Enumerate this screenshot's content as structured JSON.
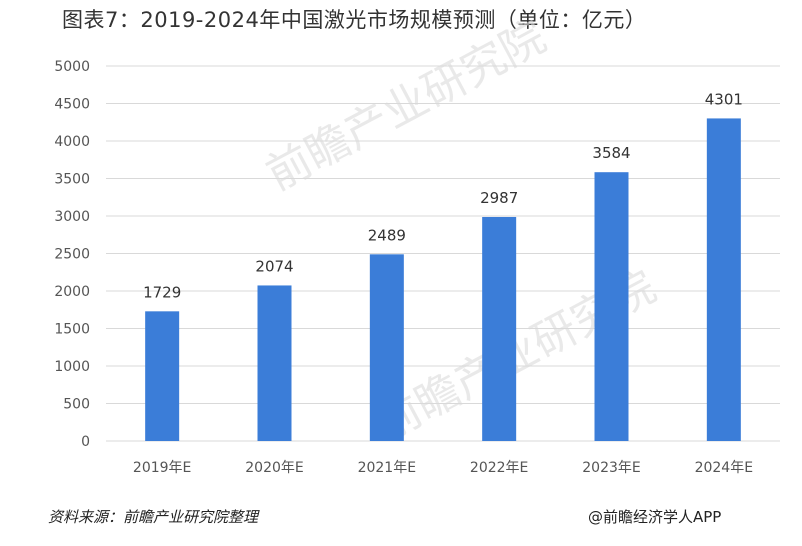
{
  "title": "图表7：2019-2024年中国激光市场规模预测（单位：亿元）",
  "watermark": "前瞻产业研究院",
  "footer": {
    "source": "资料来源：前瞻产业研究院整理",
    "brand": "@前瞻经济学人APP"
  },
  "colors": {
    "bar": "#3B7DD8",
    "grid": "#d9d9d9",
    "axis_text": "#555555"
  },
  "chart_data": {
    "type": "bar",
    "categories": [
      "2019年E",
      "2020年E",
      "2021年E",
      "2022年E",
      "2023年E",
      "2024年E"
    ],
    "values": [
      1729,
      2074,
      2489,
      2987,
      3584,
      4301
    ],
    "value_labels": [
      "1729",
      "2074",
      "2489",
      "2987",
      "3584",
      "4301"
    ],
    "ylim": [
      0,
      5000
    ],
    "yticks": [
      "0",
      "500",
      "1000",
      "1500",
      "2000",
      "2500",
      "3000",
      "3500",
      "4000",
      "4500",
      "5000"
    ],
    "grid": true
  }
}
